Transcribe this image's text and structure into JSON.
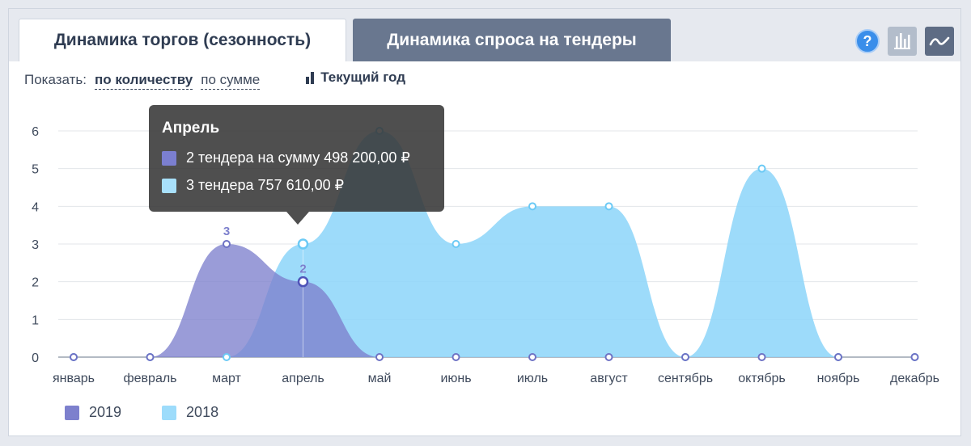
{
  "tabs": [
    {
      "label": "Динамика торгов (сезонность)",
      "active": true
    },
    {
      "label": "Динамика спроса на тендеры",
      "active": false
    }
  ],
  "tools": {
    "help_label": "?",
    "bar_icon": "bar-chart-icon",
    "line_icon": "line-chart-icon"
  },
  "controls": {
    "show_label": "Показать:",
    "by_count": "по количеству",
    "by_sum": "по сумме",
    "current_year": "Текущий год"
  },
  "tooltip": {
    "title": "Апрель",
    "rows": [
      {
        "text": "2 тендера на сумму 498 200,00 ₽",
        "color": "#7b7fd0"
      },
      {
        "text": "3 тендера 757 610,00 ₽",
        "color": "#a8e0fb"
      }
    ]
  },
  "chart_data": {
    "type": "area",
    "categories": [
      "январь",
      "февраль",
      "март",
      "апрель",
      "май",
      "июнь",
      "июль",
      "август",
      "сентябрь",
      "октябрь",
      "ноябрь",
      "декабрь"
    ],
    "ylim": [
      0,
      6
    ],
    "yticks": [
      0,
      1,
      2,
      3,
      4,
      5,
      6
    ],
    "grid": true,
    "legend_position": "bottom-left",
    "series": [
      {
        "name": "2018",
        "values": [
          0,
          0,
          0,
          3,
          6,
          3,
          4,
          4,
          0,
          5,
          0,
          0
        ],
        "color": "#8fd6f9"
      },
      {
        "name": "2019",
        "values": [
          0,
          0,
          3,
          2,
          0,
          0,
          0,
          0,
          0,
          0,
          0,
          0
        ],
        "color": "#7d80cd"
      }
    ],
    "data_labels": [
      {
        "series": "2019",
        "index": 2,
        "text": "3"
      },
      {
        "series": "2019",
        "index": 3,
        "text": "2"
      }
    ],
    "highlight_index": 3
  }
}
